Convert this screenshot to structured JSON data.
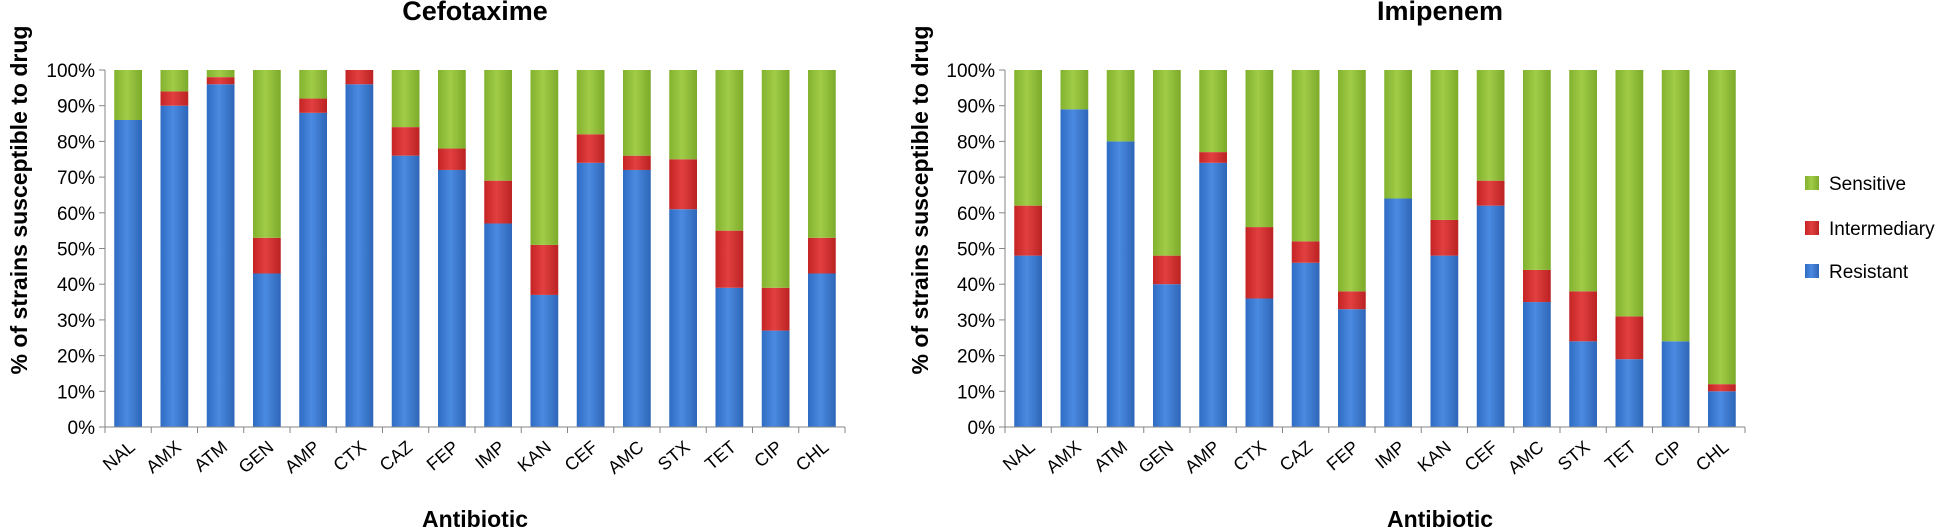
{
  "legend": {
    "position": "right",
    "items": [
      {
        "name": "Sensitive",
        "color": "#92c13a"
      },
      {
        "name": "Intermediary",
        "color": "#d93232"
      },
      {
        "name": "Resistant",
        "color": "#3f7fd6"
      }
    ]
  },
  "chart_data": [
    {
      "type": "bar",
      "stacked": true,
      "title": "Cefotaxime",
      "xlabel": "Antibiotic",
      "ylabel": "% of strains susceptible to drug",
      "ylim": [
        0,
        100
      ],
      "yticks": [
        "0%",
        "10%",
        "20%",
        "30%",
        "40%",
        "50%",
        "60%",
        "70%",
        "80%",
        "90%",
        "100%"
      ],
      "grid": false,
      "categories": [
        "NAL",
        "AMX",
        "ATM",
        "GEN",
        "AMP",
        "CTX",
        "CAZ",
        "FEP",
        "IMP",
        "KAN",
        "CEF",
        "AMC",
        "STX",
        "TET",
        "CIP",
        "CHL"
      ],
      "series": [
        {
          "name": "Resistant",
          "values": [
            86,
            90,
            96,
            43,
            88,
            96,
            76,
            72,
            57,
            37,
            74,
            72,
            61,
            39,
            27,
            43
          ]
        },
        {
          "name": "Intermediary",
          "values": [
            0,
            4,
            2,
            10,
            4,
            4,
            8,
            6,
            12,
            14,
            8,
            4,
            14,
            16,
            12,
            10
          ]
        },
        {
          "name": "Sensitive",
          "values": [
            14,
            6,
            2,
            47,
            8,
            0,
            16,
            22,
            31,
            49,
            18,
            24,
            25,
            45,
            61,
            47
          ]
        }
      ]
    },
    {
      "type": "bar",
      "stacked": true,
      "title": "Imipenem",
      "xlabel": "Antibiotic",
      "ylabel": "% of strains susceptible to drug",
      "ylim": [
        0,
        100
      ],
      "yticks": [
        "0%",
        "10%",
        "20%",
        "30%",
        "40%",
        "50%",
        "60%",
        "70%",
        "80%",
        "90%",
        "100%"
      ],
      "grid": false,
      "categories": [
        "NAL",
        "AMX",
        "ATM",
        "GEN",
        "AMP",
        "CTX",
        "CAZ",
        "FEP",
        "IMP",
        "KAN",
        "CEF",
        "AMC",
        "STX",
        "TET",
        "CIP",
        "CHL"
      ],
      "series": [
        {
          "name": "Resistant",
          "values": [
            48,
            89,
            80,
            40,
            74,
            36,
            46,
            33,
            64,
            48,
            62,
            35,
            24,
            19,
            24,
            10
          ]
        },
        {
          "name": "Intermediary",
          "values": [
            14,
            0,
            0,
            8,
            3,
            20,
            6,
            5,
            0,
            10,
            7,
            9,
            14,
            12,
            0,
            2
          ]
        },
        {
          "name": "Sensitive",
          "values": [
            38,
            11,
            20,
            52,
            23,
            44,
            48,
            62,
            36,
            42,
            31,
            56,
            62,
            69,
            76,
            88
          ]
        }
      ]
    }
  ]
}
